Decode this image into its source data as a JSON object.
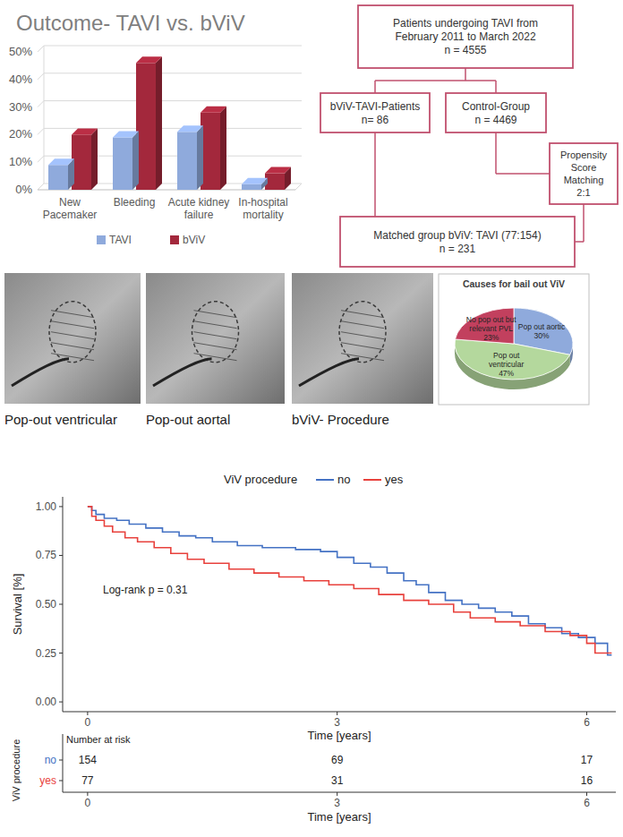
{
  "chart_data": [
    {
      "type": "bar",
      "title": "Outcome- TAVI vs. bViV",
      "categories": [
        "New Pacemaker",
        "Bleeding",
        "Acute kidney failure",
        "In-hospital mortality"
      ],
      "series": [
        {
          "name": "TAVI",
          "color": "#8faadc",
          "values": [
            9,
            19,
            21,
            2
          ]
        },
        {
          "name": "bViV",
          "color": "#a3283c",
          "values": [
            20,
            46,
            28,
            6
          ]
        }
      ],
      "ylim": [
        0,
        50
      ],
      "yticks": [
        {
          "value": 0,
          "label": "0%"
        },
        {
          "value": 10,
          "label": "10%"
        },
        {
          "value": 20,
          "label": "20%"
        },
        {
          "value": 30,
          "label": "30%"
        },
        {
          "value": 40,
          "label": "40%"
        },
        {
          "value": 50,
          "label": "50%"
        }
      ],
      "grid": true,
      "legend": "bottom"
    },
    {
      "type": "pie",
      "title": "Causes for bail out ViV",
      "categories": [
        "Pop out aortic",
        "Pop out ventricular",
        "No pop out but relevant PVL"
      ],
      "values": [
        30,
        47,
        23
      ],
      "value_labels": [
        "30%",
        "47%",
        "23%"
      ],
      "colors": [
        "#8faadc",
        "#b4d89d",
        "#c2405e"
      ],
      "data_labels": true
    },
    {
      "type": "line",
      "line_style": "step",
      "legend_title": "ViV procedure",
      "legend": "top",
      "x_label": "Time [years]",
      "y_label": "Survival [%]",
      "annotations": [
        "Log-rank p = 0.31"
      ],
      "series": [
        {
          "name": "no",
          "color": "#4472c4",
          "x": [
            0,
            0.05,
            0.1,
            0.2,
            0.35,
            0.5,
            0.7,
            0.9,
            1.1,
            1.3,
            1.5,
            1.8,
            2.1,
            2.5,
            2.8,
            3.0,
            3.2,
            3.4,
            3.6,
            3.8,
            3.95,
            4.1,
            4.3,
            4.5,
            4.7,
            4.9,
            5.1,
            5.3,
            5.5,
            5.7,
            5.9,
            6.1,
            6.25,
            6.3
          ],
          "values": [
            1,
            0.98,
            0.96,
            0.94,
            0.93,
            0.91,
            0.89,
            0.87,
            0.85,
            0.84,
            0.82,
            0.8,
            0.79,
            0.78,
            0.77,
            0.74,
            0.71,
            0.69,
            0.66,
            0.62,
            0.6,
            0.56,
            0.52,
            0.5,
            0.48,
            0.46,
            0.44,
            0.4,
            0.38,
            0.35,
            0.33,
            0.3,
            0.24,
            0.24
          ]
        },
        {
          "name": "yes",
          "color": "#e8413c",
          "x": [
            0,
            0.05,
            0.1,
            0.2,
            0.3,
            0.45,
            0.6,
            0.8,
            1.0,
            1.2,
            1.4,
            1.7,
            2.0,
            2.3,
            2.6,
            2.9,
            3.2,
            3.5,
            3.8,
            4.1,
            4.4,
            4.6,
            4.9,
            5.2,
            5.5,
            5.8,
            6.0,
            6.1,
            6.3
          ],
          "values": [
            1,
            0.95,
            0.93,
            0.9,
            0.87,
            0.84,
            0.82,
            0.79,
            0.76,
            0.73,
            0.71,
            0.68,
            0.66,
            0.64,
            0.62,
            0.6,
            0.58,
            0.55,
            0.52,
            0.5,
            0.46,
            0.43,
            0.41,
            0.39,
            0.36,
            0.34,
            0.3,
            0.25,
            0.25
          ]
        }
      ],
      "xlim": [
        -0.3,
        6.35
      ],
      "xticks": [
        0,
        3,
        6
      ],
      "ylim": [
        -0.05,
        1.05
      ],
      "yticks": [
        {
          "value": 0,
          "label": "0.00"
        },
        {
          "value": 0.25,
          "label": "0.25"
        },
        {
          "value": 0.5,
          "label": "0.50"
        },
        {
          "value": 0.75,
          "label": "0.75"
        },
        {
          "value": 1,
          "label": "1.00"
        }
      ],
      "grid": false,
      "risk_table": {
        "title": "Number at risk",
        "x": [
          0,
          3,
          6
        ],
        "rows": [
          {
            "name": "no",
            "values": [
              154,
              69,
              17
            ]
          },
          {
            "name": "yes",
            "values": [
              77,
              31,
              16
            ]
          }
        ]
      }
    }
  ],
  "flowchart": {
    "nodes": [
      {
        "label": "Patients undergoing TAVI from February 2011 to March 2022",
        "n": "n = 4555"
      },
      {
        "label": "bViV-TAVI-Patients",
        "n": "n= 86"
      },
      {
        "label": "Control-Group",
        "n": "n = 4469"
      },
      {
        "label": "Propensity Score Matching 2:1"
      },
      {
        "label": "Matched group bViV: TAVI (77:154)",
        "n": "n = 231"
      }
    ]
  },
  "images": [
    {
      "caption": "Pop-out ventricular"
    },
    {
      "caption": "Pop-out aortal"
    },
    {
      "caption": "bViV- Procedure"
    }
  ]
}
